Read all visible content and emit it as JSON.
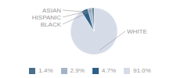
{
  "chart_data": {
    "type": "pie",
    "categories": [
      "WHITE",
      "ASIAN",
      "HISPANIC",
      "BLACK"
    ],
    "values": [
      91.0,
      4.7,
      2.9,
      1.4
    ],
    "value_labels": [
      "91.0%",
      "4.7%",
      "2.9%",
      "1.4%"
    ],
    "colors": [
      "#d5dce8",
      "#2e5f87",
      "#a4b4c8",
      "#4a6f8a"
    ],
    "legend": "bottom"
  }
}
